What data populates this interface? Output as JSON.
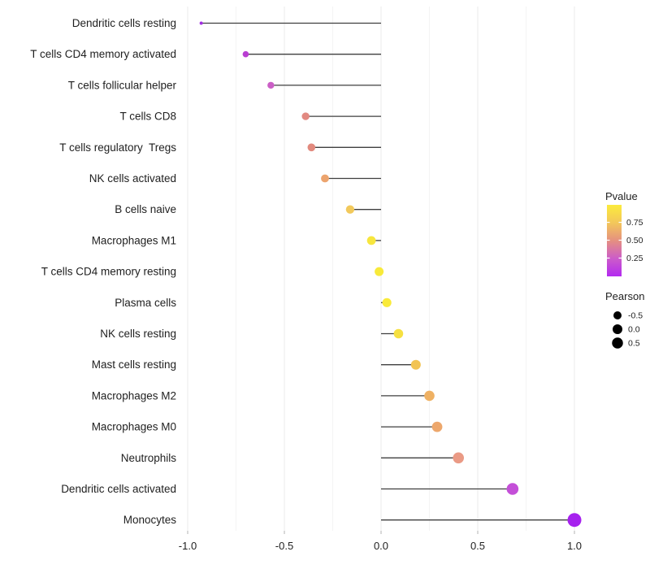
{
  "chart_data": {
    "type": "scatter",
    "style": "horizontal-lollipop",
    "title": "",
    "xlabel": "",
    "ylabel": "",
    "xlim": [
      -1.08,
      1.08
    ],
    "grid": "vertical-only",
    "x_ticks": [
      {
        "value": -1.0,
        "label": "-1.0"
      },
      {
        "value": -0.5,
        "label": "-0.5"
      },
      {
        "value": 0.0,
        "label": "0.0"
      },
      {
        "value": 0.5,
        "label": "0.5"
      },
      {
        "value": 1.0,
        "label": "1.0"
      }
    ],
    "x_minor_gridlines": [
      -0.75,
      -0.25,
      0.25,
      0.75
    ],
    "points": [
      {
        "label": "Dendritic cells resting",
        "pearson": -0.93,
        "dot_color": "#A22FE2",
        "dot_diameter": 4.0
      },
      {
        "label": "T cells CD4 memory activated",
        "pearson": -0.7,
        "dot_color": "#B93ED2",
        "dot_diameter": 7.6
      },
      {
        "label": "T cells follicular helper",
        "pearson": -0.57,
        "dot_color": "#CB5FC6",
        "dot_diameter": 8.4
      },
      {
        "label": "T cells CD8",
        "pearson": -0.39,
        "dot_color": "#E28981",
        "dot_diameter": 9.4
      },
      {
        "label": "T cells regulatory  Tregs",
        "pearson": -0.36,
        "dot_color": "#E28A7E",
        "dot_diameter": 9.6
      },
      {
        "label": "NK cells activated",
        "pearson": -0.29,
        "dot_color": "#ECA46E",
        "dot_diameter": 9.8
      },
      {
        "label": "B cells naive",
        "pearson": -0.16,
        "dot_color": "#F2C95C",
        "dot_diameter": 10.4
      },
      {
        "label": "Macrophages M1",
        "pearson": -0.05,
        "dot_color": "#F7E63E",
        "dot_diameter": 10.8
      },
      {
        "label": "T cells CD4 memory resting",
        "pearson": -0.01,
        "dot_color": "#F8EA3A",
        "dot_diameter": 11.0
      },
      {
        "label": "Plasma cells",
        "pearson": 0.03,
        "dot_color": "#F9EA39",
        "dot_diameter": 11.2
      },
      {
        "label": "NK cells resting",
        "pearson": 0.09,
        "dot_color": "#F6E041",
        "dot_diameter": 11.6
      },
      {
        "label": "Mast cells resting",
        "pearson": 0.18,
        "dot_color": "#F2C454",
        "dot_diameter": 12.0
      },
      {
        "label": "Macrophages M2",
        "pearson": 0.25,
        "dot_color": "#EFB163",
        "dot_diameter": 12.6
      },
      {
        "label": "Macrophages M0",
        "pearson": 0.29,
        "dot_color": "#EDA76C",
        "dot_diameter": 12.8
      },
      {
        "label": "Neutrophils",
        "pearson": 0.4,
        "dot_color": "#EA9A85",
        "dot_diameter": 13.6
      },
      {
        "label": "Dendritic cells activated",
        "pearson": 0.68,
        "dot_color": "#C44FD8",
        "dot_diameter": 14.6
      },
      {
        "label": "Monocytes",
        "pearson": 1.0,
        "dot_color": "#A621EE",
        "dot_diameter": 17.0
      }
    ],
    "legend_color": {
      "title": "Pvalue",
      "ticks": [
        {
          "value": 0.75,
          "label": "0.75"
        },
        {
          "value": 0.5,
          "label": "0.50"
        },
        {
          "value": 0.25,
          "label": "0.25"
        }
      ],
      "gradient_top_to_bottom": [
        {
          "offset": 0.0,
          "color": "#FBEB3C"
        },
        {
          "offset": 0.25,
          "color": "#F3C75A"
        },
        {
          "offset": 0.5,
          "color": "#E59080"
        },
        {
          "offset": 0.75,
          "color": "#CC5CC9"
        },
        {
          "offset": 1.0,
          "color": "#B32AF0"
        }
      ]
    },
    "legend_size": {
      "title": "Pearson",
      "entries": [
        {
          "label": "-0.5",
          "diameter": 10.0
        },
        {
          "label": "0.0",
          "diameter": 12.0
        },
        {
          "label": "0.5",
          "diameter": 13.5
        }
      ],
      "dot_color": "#000000"
    },
    "colors": {
      "background": "#ffffff",
      "stem": "#3F3F3F",
      "major_gridline": "#EBEBEB",
      "minor_gridline": "#F4F4F4",
      "axis_tick": "#B3B3B3",
      "axis_text": "#1F1F1F",
      "legend_text": "#1F1F1F"
    }
  }
}
